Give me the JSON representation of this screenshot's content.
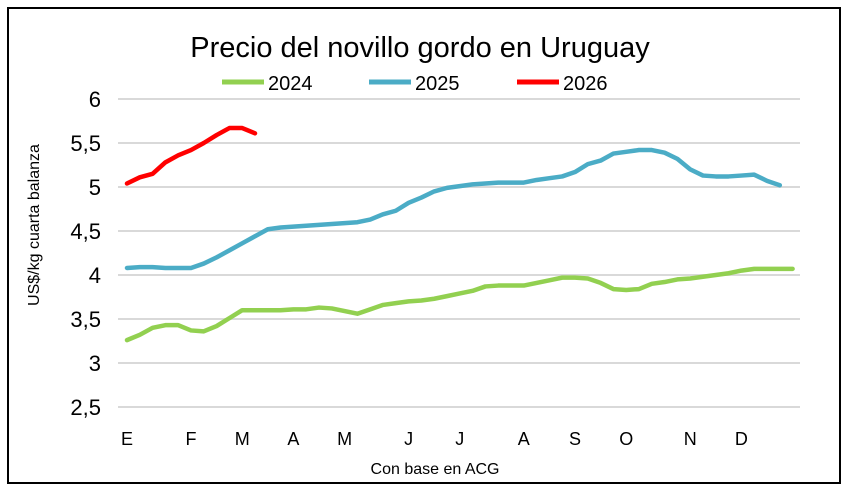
{
  "chart_data": {
    "type": "line",
    "title": "Precio del novillo gordo en Uruguay",
    "xlabel": "Con base en ACG",
    "ylabel": "US$/kg cuarta balanza",
    "ylim": [
      2.5,
      6
    ],
    "yticks": [
      "2,5",
      "3",
      "3,5",
      "4",
      "4,5",
      "5",
      "5,5",
      "6"
    ],
    "ytick_values": [
      2.5,
      3,
      3.5,
      4,
      4.5,
      5,
      5.5,
      6
    ],
    "x_unit": "week of year",
    "month_labels": [
      "E",
      "F",
      "M",
      "A",
      "M",
      "J",
      "J",
      "A",
      "S",
      "O",
      "N",
      "D"
    ],
    "month_label_weeks": [
      1,
      6,
      10,
      14,
      18,
      23,
      27,
      32,
      36,
      40,
      45,
      49
    ],
    "grid": true,
    "legend_placement": "top",
    "series": [
      {
        "name": "2024",
        "color": "#92d050",
        "values": [
          3.26,
          3.32,
          3.4,
          3.43,
          3.43,
          3.37,
          3.36,
          3.42,
          3.51,
          3.6,
          3.6,
          3.6,
          3.6,
          3.61,
          3.61,
          3.63,
          3.62,
          3.59,
          3.56,
          3.61,
          3.66,
          3.68,
          3.7,
          3.71,
          3.73,
          3.76,
          3.79,
          3.82,
          3.87,
          3.88,
          3.88,
          3.88,
          3.91,
          3.94,
          3.97,
          3.97,
          3.96,
          3.91,
          3.84,
          3.83,
          3.84,
          3.9,
          3.92,
          3.95,
          3.96,
          3.98,
          4.0,
          4.02,
          4.05,
          4.07,
          4.07,
          4.07,
          4.07
        ]
      },
      {
        "name": "2025",
        "color": "#4bacc6",
        "values": [
          4.08,
          4.09,
          4.09,
          4.08,
          4.08,
          4.08,
          4.13,
          4.2,
          4.28,
          4.36,
          4.44,
          4.52,
          4.54,
          4.55,
          4.56,
          4.57,
          4.58,
          4.59,
          4.6,
          4.63,
          4.69,
          4.73,
          4.82,
          4.88,
          4.95,
          4.99,
          5.01,
          5.03,
          5.04,
          5.05,
          5.05,
          5.05,
          5.08,
          5.1,
          5.12,
          5.17,
          5.26,
          5.3,
          5.38,
          5.4,
          5.42,
          5.42,
          5.39,
          5.32,
          5.2,
          5.13,
          5.12,
          5.12,
          5.13,
          5.14,
          5.07,
          5.02
        ]
      },
      {
        "name": "2026",
        "color": "#ff0000",
        "values": [
          5.04,
          5.11,
          5.15,
          5.28,
          5.36,
          5.42,
          5.5,
          5.59,
          5.67,
          5.67,
          5.61
        ]
      }
    ]
  }
}
